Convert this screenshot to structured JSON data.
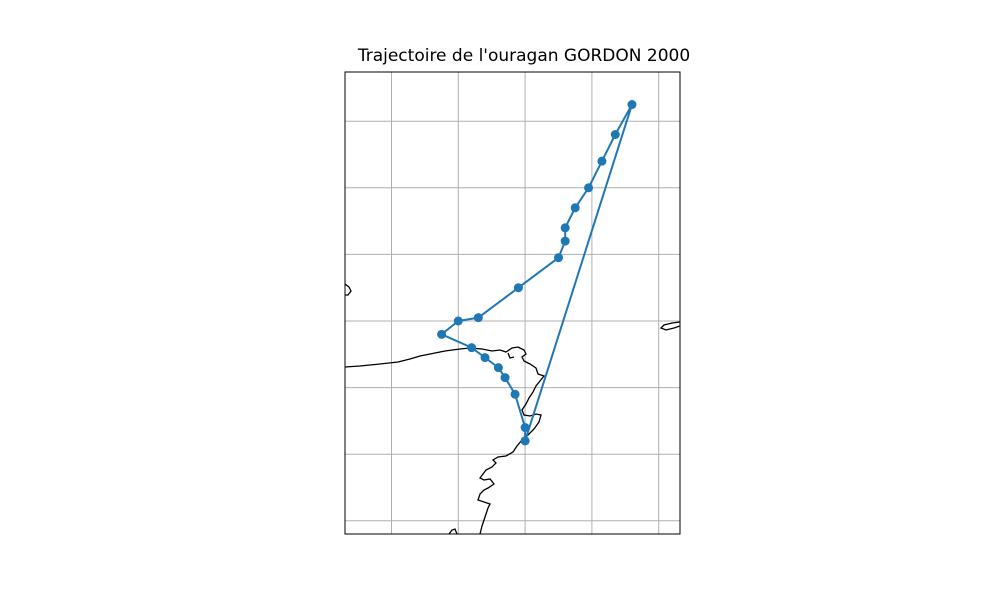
{
  "title": "Trajectoire de l'ouragan GORDON 2000",
  "colors": {
    "track": "#1f77b4",
    "grid": "#b0b0b0",
    "coast": "#000000",
    "frame": "#000000"
  },
  "map_data": {
    "type": "storm-track",
    "projection": "geographic",
    "grid": true,
    "lon_gridlines": [
      -90,
      -88,
      -86,
      -84,
      -82,
      -80
    ],
    "lat_gridlines": [
      15,
      17,
      19,
      21,
      23,
      25,
      27,
      29
    ],
    "track": [
      {
        "lon": -86.0,
        "lat": 17.4
      },
      {
        "lon": -86.0,
        "lat": 17.8
      },
      {
        "lon": -86.3,
        "lat": 18.8
      },
      {
        "lon": -86.6,
        "lat": 19.3
      },
      {
        "lon": -86.8,
        "lat": 19.6
      },
      {
        "lon": -87.2,
        "lat": 19.9
      },
      {
        "lon": -87.6,
        "lat": 20.2
      },
      {
        "lon": -88.5,
        "lat": 20.6
      },
      {
        "lon": -88.0,
        "lat": 21.0
      },
      {
        "lon": -87.4,
        "lat": 21.1
      },
      {
        "lon": -86.2,
        "lat": 22.0
      },
      {
        "lon": -85.0,
        "lat": 22.9
      },
      {
        "lon": -84.8,
        "lat": 23.4
      },
      {
        "lon": -84.8,
        "lat": 23.8
      },
      {
        "lon": -84.5,
        "lat": 24.4
      },
      {
        "lon": -84.1,
        "lat": 25.0
      },
      {
        "lon": -83.7,
        "lat": 25.8
      },
      {
        "lon": -83.3,
        "lat": 26.6
      },
      {
        "lon": -82.8,
        "lat": 27.5
      },
      {
        "lon": -86.0,
        "lat": 17.4
      }
    ]
  }
}
